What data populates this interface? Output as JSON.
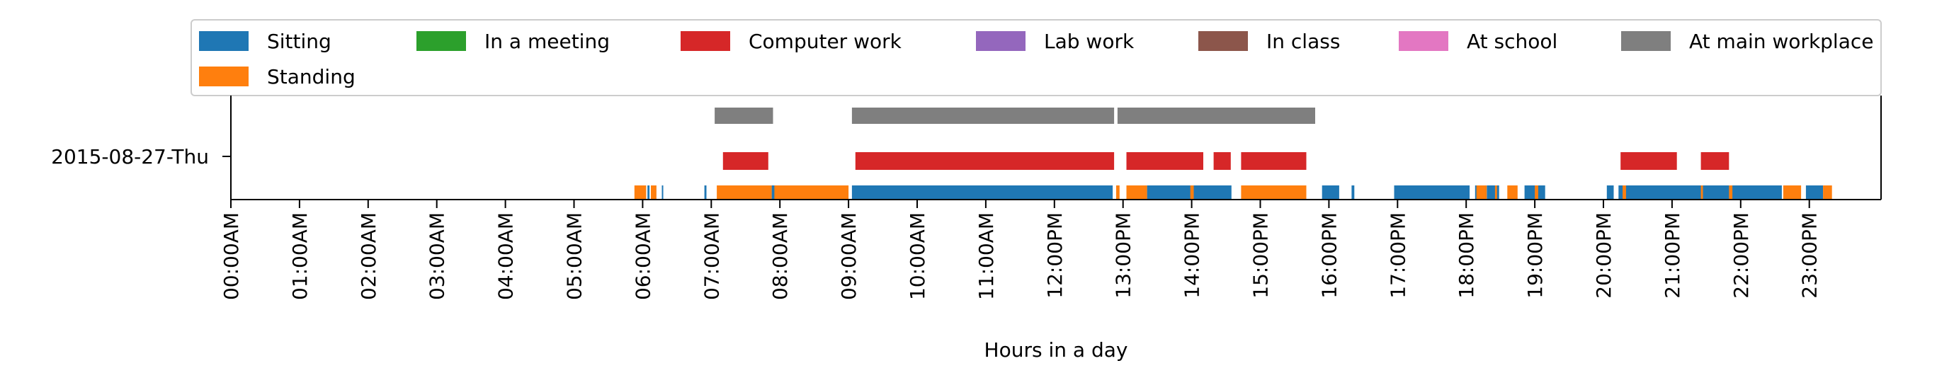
{
  "chart_data": {
    "type": "timeline",
    "title": "",
    "xlabel": "Hours in a day",
    "ylabel": "",
    "xlim": [
      0,
      24
    ],
    "row_label": "2015-08-27-Thu",
    "x_tick_labels": [
      "00:00AM",
      "01:00AM",
      "02:00AM",
      "03:00AM",
      "04:00AM",
      "05:00AM",
      "06:00AM",
      "07:00AM",
      "08:00AM",
      "09:00AM",
      "10:00AM",
      "11:00AM",
      "12:00PM",
      "13:00PM",
      "14:00PM",
      "15:00PM",
      "16:00PM",
      "17:00PM",
      "18:00PM",
      "19:00PM",
      "20:00PM",
      "21:00PM",
      "22:00PM",
      "23:00PM"
    ],
    "legend": {
      "placement": "top",
      "entries": [
        {
          "label": "Sitting",
          "color": "#1f77b4"
        },
        {
          "label": "In a meeting",
          "color": "#2ca02c"
        },
        {
          "label": "Computer work",
          "color": "#d62728"
        },
        {
          "label": "Lab work",
          "color": "#9467bd"
        },
        {
          "label": "In class",
          "color": "#8c564b"
        },
        {
          "label": "At school",
          "color": "#e377c2"
        },
        {
          "label": "At main workplace",
          "color": "#7f7f7f"
        },
        {
          "label": "Standing",
          "color": "#ff7f0e"
        }
      ]
    },
    "series": [
      {
        "name": "Sitting",
        "color": "#1f77b4",
        "lane": 0,
        "intervals": [
          [
            6.0,
            6.05
          ],
          [
            6.07,
            6.1
          ],
          [
            6.15,
            6.2
          ],
          [
            6.28,
            6.3
          ],
          [
            6.9,
            6.93
          ],
          [
            7.88,
            7.92
          ],
          [
            9.05,
            12.85
          ],
          [
            13.35,
            14.58
          ],
          [
            15.9,
            16.15
          ],
          [
            16.33,
            16.37
          ],
          [
            16.95,
            18.05
          ],
          [
            18.13,
            18.17
          ],
          [
            18.3,
            18.48
          ],
          [
            18.85,
            19.15
          ],
          [
            20.05,
            20.15
          ],
          [
            20.22,
            22.6
          ],
          [
            22.95,
            23.2
          ]
        ]
      },
      {
        "name": "Standing",
        "color": "#ff7f0e",
        "lane": 0,
        "intervals": [
          [
            5.88,
            6.05
          ],
          [
            6.12,
            6.2
          ],
          [
            7.08,
            7.88
          ],
          [
            7.92,
            9.0
          ],
          [
            12.9,
            12.95
          ],
          [
            13.05,
            13.35
          ],
          [
            13.98,
            14.03
          ],
          [
            14.72,
            15.67
          ],
          [
            18.15,
            18.3
          ],
          [
            18.42,
            18.45
          ],
          [
            18.6,
            18.75
          ],
          [
            19.0,
            19.05
          ],
          [
            20.28,
            20.33
          ],
          [
            21.42,
            21.45
          ],
          [
            21.83,
            21.88
          ],
          [
            22.62,
            22.88
          ],
          [
            23.2,
            23.33
          ]
        ]
      },
      {
        "name": "Computer work",
        "color": "#d62728",
        "lane": 1,
        "intervals": [
          [
            7.17,
            7.83
          ],
          [
            9.1,
            12.87
          ],
          [
            13.05,
            14.17
          ],
          [
            14.32,
            14.57
          ],
          [
            14.72,
            15.67
          ],
          [
            20.25,
            21.07
          ],
          [
            21.42,
            21.83
          ]
        ]
      },
      {
        "name": "At main workplace",
        "color": "#7f7f7f",
        "lane": 2,
        "intervals": [
          [
            7.05,
            7.9
          ],
          [
            9.05,
            12.87
          ],
          [
            12.92,
            15.8
          ]
        ]
      }
    ]
  }
}
